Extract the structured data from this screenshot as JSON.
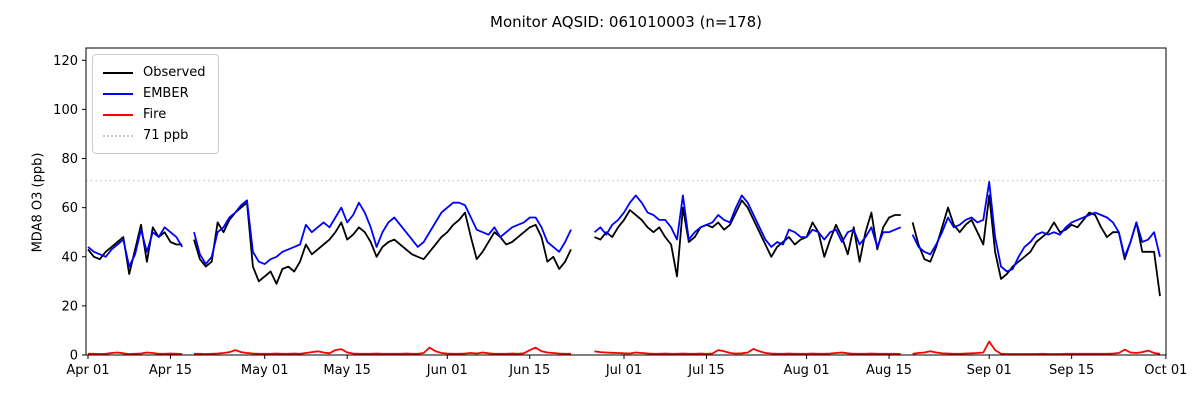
{
  "figure": {
    "background": "#ffffff"
  },
  "legend": {
    "position": "upper-left",
    "items": [
      {
        "label": "Observed",
        "color": "#000000",
        "style": "solid"
      },
      {
        "label": "EMBER",
        "color": "#0000ff",
        "style": "solid"
      },
      {
        "label": "Fire",
        "color": "#ff0000",
        "style": "solid"
      },
      {
        "label": "71 ppb",
        "color": "#c8c8c8",
        "style": "dotted"
      }
    ]
  },
  "chart_data": {
    "type": "line",
    "title": "Monitor AQSID: 061010003 (n=178)",
    "xlabel": "",
    "ylabel": "MDA8 O3 (ppb)",
    "ylim": [
      0,
      125
    ],
    "yticks": [
      0,
      20,
      40,
      60,
      80,
      100,
      120
    ],
    "grid": false,
    "legend_position": "upper left",
    "n_points": 178,
    "x_unit": "day",
    "x_start_label": "Apr 01",
    "x_end_label": "Sep 30",
    "x_tick_labels": [
      "Apr 01",
      "Apr 15",
      "May 01",
      "May 15",
      "Jun 01",
      "Jun 15",
      "Jul 01",
      "Jul 15",
      "Aug 01",
      "Aug 15",
      "Sep 01",
      "Sep 15",
      "Oct 01"
    ],
    "x_tick_day_index": [
      0,
      14,
      30,
      44,
      61,
      75,
      91,
      105,
      122,
      136,
      153,
      167,
      183
    ],
    "missing_days": [
      "Apr 18",
      "Jun 23",
      "Jun 24",
      "Jun 25",
      "Aug 18"
    ],
    "reference_line": {
      "value": 71,
      "label": "71 ppb",
      "color": "#c8c8c8",
      "style": "dotted"
    },
    "series": [
      {
        "name": "Observed",
        "color": "#000000",
        "values": [
          43,
          40,
          39,
          42,
          44,
          46,
          48,
          33,
          43,
          53,
          38,
          52,
          48,
          50,
          46,
          45,
          45,
          null,
          47,
          39,
          36,
          38,
          54,
          50,
          55,
          58,
          60,
          62,
          36,
          30,
          32,
          34,
          29,
          35,
          36,
          34,
          38,
          45,
          41,
          43,
          45,
          47,
          50,
          54,
          47,
          49,
          52,
          50,
          46,
          40,
          44,
          46,
          47,
          45,
          43,
          41,
          40,
          39,
          42,
          45,
          48,
          50,
          53,
          55,
          58,
          48,
          39,
          42,
          46,
          50,
          48,
          45,
          46,
          48,
          50,
          52,
          53,
          48,
          38,
          40,
          35,
          38,
          43,
          null,
          null,
          null,
          48,
          47,
          50,
          48,
          52,
          55,
          59,
          57,
          55,
          52,
          50,
          52,
          48,
          45,
          32,
          60,
          46,
          48,
          52,
          53,
          52,
          54,
          51,
          53,
          58,
          63,
          60,
          55,
          50,
          45,
          40,
          44,
          46,
          48,
          45,
          47,
          48,
          54,
          50,
          40,
          47,
          53,
          48,
          41,
          52,
          38,
          50,
          58,
          43,
          52,
          56,
          57,
          57,
          null,
          54,
          45,
          39,
          38,
          44,
          52,
          60,
          53,
          50,
          53,
          55,
          50,
          45,
          65,
          42,
          31,
          33,
          36,
          38,
          40,
          42,
          46,
          48,
          50,
          54,
          50,
          51,
          53,
          52,
          55,
          58,
          57,
          52,
          48,
          50,
          50,
          39,
          46,
          54,
          42,
          42,
          42,
          24
        ]
      },
      {
        "name": "EMBER",
        "color": "#0000ff",
        "values": [
          44,
          42,
          41,
          40,
          43,
          45,
          47,
          36,
          41,
          51,
          42,
          50,
          48,
          52,
          50,
          48,
          44,
          null,
          50,
          41,
          37,
          40,
          50,
          52,
          56,
          58,
          61,
          63,
          42,
          38,
          37,
          39,
          40,
          42,
          43,
          44,
          45,
          53,
          50,
          52,
          54,
          52,
          56,
          60,
          54,
          57,
          62,
          58,
          52,
          44,
          50,
          54,
          56,
          53,
          50,
          47,
          44,
          46,
          50,
          54,
          58,
          60,
          62,
          62,
          61,
          56,
          51,
          50,
          49,
          52,
          48,
          50,
          52,
          53,
          54,
          56,
          56,
          52,
          46,
          44,
          42,
          46,
          51,
          null,
          null,
          null,
          50,
          52,
          49,
          53,
          55,
          58,
          62,
          65,
          62,
          58,
          57,
          55,
          55,
          52,
          47,
          65,
          47,
          50,
          52,
          53,
          54,
          57,
          55,
          54,
          60,
          65,
          62,
          57,
          52,
          47,
          44,
          46,
          45,
          51,
          50,
          48,
          48,
          51,
          50,
          47,
          50,
          51,
          46,
          50,
          51,
          45,
          48,
          52,
          44,
          50,
          50,
          51,
          52,
          null,
          49,
          44,
          42,
          41,
          45,
          50,
          56,
          52,
          53,
          55,
          56,
          54,
          55,
          70.5,
          48,
          36,
          34,
          35,
          40,
          44,
          46,
          49,
          50,
          49,
          50,
          49,
          52,
          54,
          55,
          56,
          57,
          58,
          57,
          56,
          54,
          50,
          40,
          46,
          54,
          46,
          47,
          50,
          40
        ]
      },
      {
        "name": "Fire",
        "color": "#ff0000",
        "values": [
          0.5,
          0.5,
          0.4,
          0.5,
          0.8,
          1.0,
          0.7,
          0.4,
          0.5,
          0.6,
          1.0,
          0.8,
          0.5,
          0.5,
          0.6,
          0.5,
          0.4,
          null,
          0.5,
          0.5,
          0.4,
          0.5,
          0.6,
          0.8,
          1.2,
          2.0,
          1.2,
          0.8,
          0.6,
          0.5,
          0.5,
          0.5,
          0.6,
          0.5,
          0.5,
          0.6,
          0.5,
          0.8,
          1.2,
          1.5,
          1.0,
          0.7,
          2.0,
          2.4,
          1.0,
          0.6,
          0.5,
          0.5,
          0.5,
          0.6,
          0.5,
          0.5,
          0.5,
          0.5,
          0.6,
          0.5,
          0.5,
          0.8,
          3.0,
          1.5,
          0.8,
          0.6,
          0.5,
          0.5,
          0.6,
          0.8,
          0.6,
          1.0,
          0.7,
          0.5,
          0.5,
          0.5,
          0.6,
          0.5,
          0.7,
          2.0,
          3.0,
          1.5,
          1.0,
          0.8,
          0.6,
          0.5,
          0.5,
          null,
          null,
          null,
          1.5,
          1.2,
          1.0,
          0.9,
          0.8,
          0.7,
          0.6,
          1.0,
          0.8,
          0.6,
          0.5,
          0.5,
          0.6,
          0.5,
          0.5,
          0.6,
          0.5,
          0.5,
          0.6,
          0.5,
          0.6,
          2.0,
          1.5,
          0.8,
          0.6,
          0.7,
          1.0,
          2.5,
          1.5,
          0.8,
          0.6,
          0.5,
          0.5,
          0.6,
          0.5,
          0.5,
          0.5,
          0.6,
          0.5,
          0.5,
          0.6,
          0.8,
          1.0,
          0.7,
          0.5,
          0.5,
          0.5,
          0.6,
          0.5,
          0.5,
          0.5,
          0.5,
          0.4,
          null,
          0.5,
          0.8,
          1.0,
          1.5,
          1.0,
          0.7,
          0.6,
          0.5,
          0.5,
          0.6,
          0.7,
          0.8,
          1.0,
          5.5,
          2.0,
          0.5,
          0.4,
          0.4,
          0.4,
          0.4,
          0.4,
          0.4,
          0.5,
          0.4,
          0.4,
          0.4,
          0.5,
          0.5,
          0.5,
          0.5,
          0.5,
          0.5,
          0.5,
          0.5,
          0.6,
          0.8,
          2.2,
          1.0,
          0.8,
          1.2,
          1.8,
          0.8,
          0.5
        ]
      }
    ]
  }
}
